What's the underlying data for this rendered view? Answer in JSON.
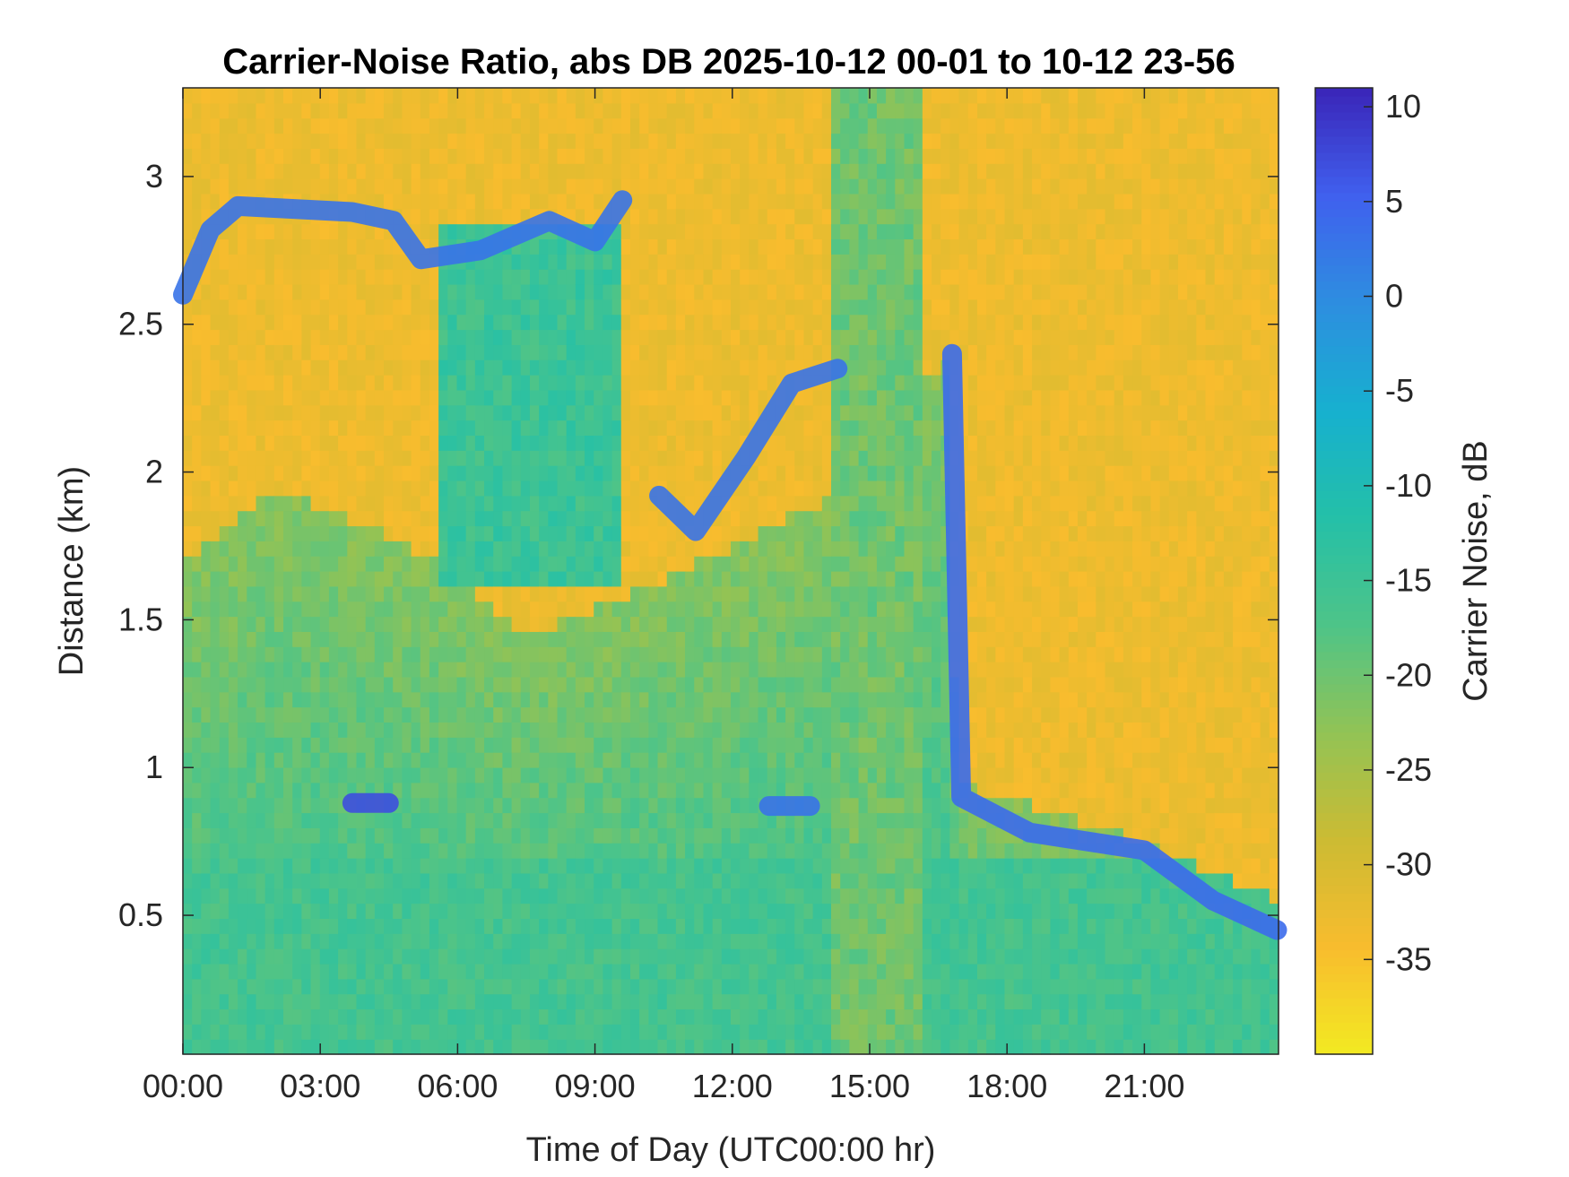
{
  "chart_data": {
    "type": "heatmap",
    "title": "Carrier-Noise Ratio, abs DB 2025-10-12 00-01 to 10-12 23-56",
    "xlabel": "Time of Day (UTC00:00 hr)",
    "ylabel": "Distance (km)",
    "colorbar_label": "Carrier Noise, dB",
    "xlim_hours": [
      0,
      23.93
    ],
    "ylim_km": [
      0.03,
      3.3
    ],
    "clim_db": [
      -40,
      11
    ],
    "x_ticks": [
      {
        "value": 0,
        "label": "00:00"
      },
      {
        "value": 3,
        "label": "03:00"
      },
      {
        "value": 6,
        "label": "06:00"
      },
      {
        "value": 9,
        "label": "09:00"
      },
      {
        "value": 12,
        "label": "12:00"
      },
      {
        "value": 15,
        "label": "15:00"
      },
      {
        "value": 18,
        "label": "18:00"
      },
      {
        "value": 21,
        "label": "21:00"
      }
    ],
    "y_ticks": [
      {
        "value": 0.5,
        "label": "0.5"
      },
      {
        "value": 1,
        "label": "1"
      },
      {
        "value": 1.5,
        "label": "1.5"
      },
      {
        "value": 2,
        "label": "2"
      },
      {
        "value": 2.5,
        "label": "2.5"
      },
      {
        "value": 3,
        "label": "3"
      }
    ],
    "colorbar_ticks": [
      {
        "value": 10,
        "label": "10"
      },
      {
        "value": 5,
        "label": "5"
      },
      {
        "value": 0,
        "label": "0"
      },
      {
        "value": -5,
        "label": "-5"
      },
      {
        "value": -10,
        "label": "-10"
      },
      {
        "value": -15,
        "label": "-15"
      },
      {
        "value": -20,
        "label": "-20"
      },
      {
        "value": -25,
        "label": "-25"
      },
      {
        "value": -30,
        "label": "-30"
      },
      {
        "value": -35,
        "label": "-35"
      }
    ],
    "colormap": "parula_reversed",
    "colormap_stops": [
      "#3a25b8",
      "#4060ee",
      "#2d8ee0",
      "#17b0cf",
      "#24c0a8",
      "#4ec488",
      "#92c355",
      "#ccbb33",
      "#f8bc2e",
      "#f2ea22"
    ],
    "background_db": -33,
    "features": [
      {
        "name": "cloud base (upper)",
        "time_h": [
          0.0,
          0.6,
          1.2,
          3.7,
          4.6,
          5.2,
          6.5,
          8.0,
          9.0,
          9.6
        ],
        "height_km": [
          2.6,
          2.82,
          2.9,
          2.88,
          2.85,
          2.72,
          2.75,
          2.85,
          2.78,
          2.92
        ],
        "db": 3
      },
      {
        "name": "cloud base (short)",
        "time_h": [
          3.7,
          4.5
        ],
        "height_km": [
          0.88,
          0.88
        ],
        "db": 7
      },
      {
        "name": "cloud base (midday)",
        "time_h": [
          10.4,
          11.2,
          12.3,
          13.3,
          14.3
        ],
        "height_km": [
          1.92,
          1.8,
          2.05,
          2.3,
          2.35
        ],
        "db": 3
      },
      {
        "name": "cloud base (low)",
        "time_h": [
          12.8,
          13.7
        ],
        "height_km": [
          0.87,
          0.87
        ],
        "db": 3
      },
      {
        "name": "cloud base (evening)",
        "time_h": [
          16.8,
          17.0,
          18.5,
          21.0,
          22.5,
          23.9
        ],
        "height_km": [
          2.4,
          0.9,
          0.78,
          0.72,
          0.55,
          0.45
        ],
        "db": 4
      }
    ]
  }
}
